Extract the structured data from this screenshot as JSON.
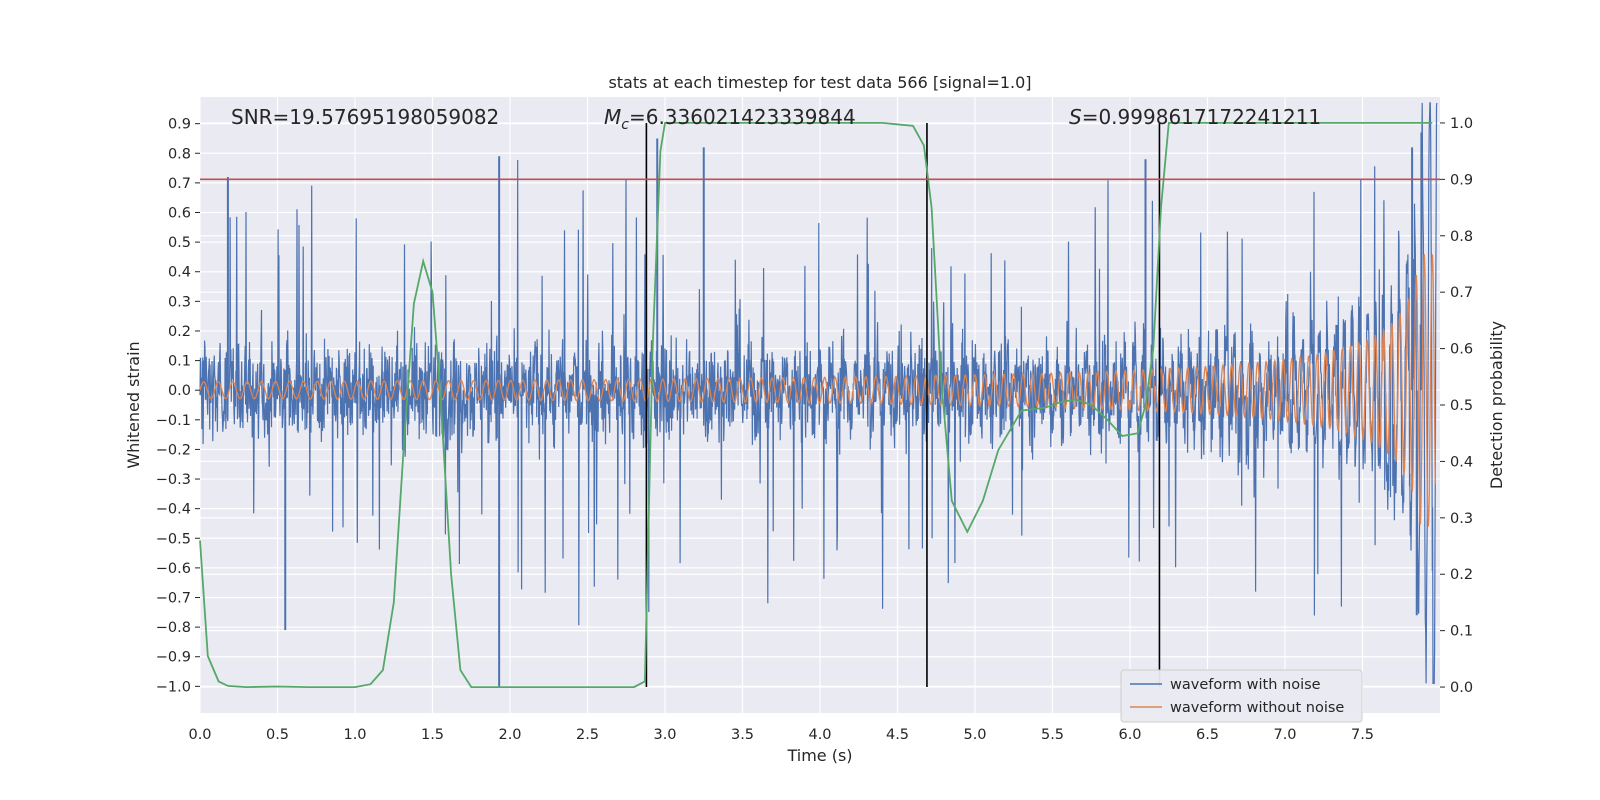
{
  "chart_data": {
    "type": "line",
    "title": "stats at each timestep for test data 566 [signal=1.0]",
    "xlabel": "Time (s)",
    "ylabel": "Whitened strain",
    "y2label": "Detection probability",
    "xlim": [
      0.0,
      8.0
    ],
    "ylim": [
      -1.09,
      0.99
    ],
    "y2lim": [
      -0.046,
      1.046
    ],
    "x_ticks": [
      "0.0",
      "0.5",
      "1.0",
      "1.5",
      "2.0",
      "2.5",
      "3.0",
      "3.5",
      "4.0",
      "4.5",
      "5.0",
      "5.5",
      "6.0",
      "6.5",
      "7.0",
      "7.5"
    ],
    "y_ticks": [
      "0.9",
      "0.8",
      "0.7",
      "0.6",
      "0.5",
      "0.4",
      "0.3",
      "0.2",
      "0.1",
      "0.0",
      "−0.1",
      "−0.2",
      "−0.3",
      "−0.4",
      "−0.5",
      "−0.6",
      "−0.7",
      "−0.8",
      "−0.9",
      "−1.0"
    ],
    "y2_ticks": [
      "1.0",
      "0.9",
      "0.8",
      "0.7",
      "0.6",
      "0.5",
      "0.4",
      "0.3",
      "0.2",
      "0.1",
      "0.0"
    ],
    "annotations": {
      "snr": "SNR=19.57695198059082",
      "mc_symbol": "M",
      "mc_sub": "c",
      "mc_value": "=6.336021423339844",
      "s_symbol": "S",
      "s_value": "=0.9998617172241211"
    },
    "legend": {
      "position": "lower-right",
      "entries": [
        "waveform with noise",
        "waveform without noise"
      ]
    },
    "threshold_probability": 0.9,
    "vertical_markers_s": [
      2.88,
      4.69,
      6.19
    ],
    "series": [
      {
        "name": "waveform with noise",
        "color": "#4c72b0",
        "description": "whitened strain with noise, amplitude roughly within ±0.5 with spikes up to ±1.0, sampled over 0–8 s"
      },
      {
        "name": "waveform without noise",
        "color": "#dd8452",
        "description": "chirp signal, amplitude growing from ~0.03 to ~0.45 toward merger near 7.95 s"
      },
      {
        "name": "detection probability",
        "color": "#55a868",
        "axis": "right",
        "x": [
          0.0,
          0.05,
          0.12,
          0.18,
          0.3,
          0.5,
          0.7,
          1.0,
          1.1,
          1.18,
          1.25,
          1.32,
          1.38,
          1.44,
          1.5,
          1.55,
          1.62,
          1.68,
          1.75,
          1.85,
          2.0,
          2.5,
          2.8,
          2.87,
          2.92,
          2.97,
          3.0,
          3.2,
          3.5,
          4.0,
          4.4,
          4.6,
          4.67,
          4.72,
          4.78,
          4.85,
          4.95,
          5.05,
          5.15,
          5.3,
          5.45,
          5.55,
          5.65,
          5.75,
          5.85,
          5.95,
          6.05,
          6.1,
          6.15,
          6.2,
          6.25,
          6.3,
          6.5,
          7.0,
          7.5,
          7.95
        ],
        "values": [
          0.26,
          0.055,
          0.01,
          0.002,
          0.0,
          0.001,
          0.0,
          0.0,
          0.005,
          0.03,
          0.15,
          0.45,
          0.68,
          0.755,
          0.7,
          0.52,
          0.2,
          0.03,
          0.0,
          0.0,
          0.0,
          0.0,
          0.0,
          0.01,
          0.6,
          0.95,
          1.0,
          1.0,
          1.0,
          1.0,
          1.0,
          0.995,
          0.96,
          0.85,
          0.55,
          0.33,
          0.275,
          0.33,
          0.42,
          0.49,
          0.495,
          0.505,
          0.51,
          0.5,
          0.475,
          0.445,
          0.45,
          0.5,
          0.6,
          0.85,
          1.0,
          1.0,
          1.0,
          1.0,
          1.0,
          1.0
        ]
      }
    ]
  }
}
